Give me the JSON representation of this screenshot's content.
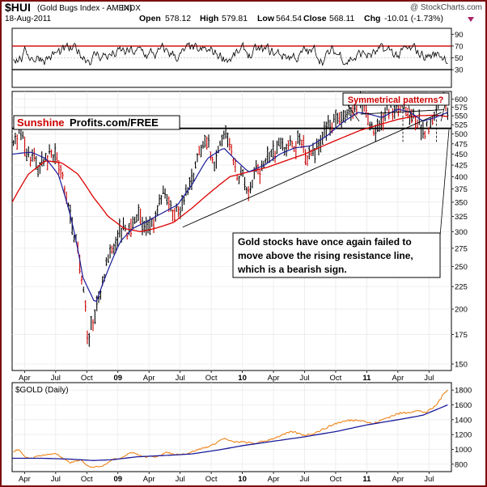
{
  "chart_data": [
    {
      "type": "line",
      "panel": "rsi",
      "ylim": [
        0,
        100
      ],
      "yticks": [
        30,
        50,
        70,
        90
      ],
      "reference_lines": [
        30,
        70
      ],
      "reference_color": "#cc0000"
    },
    {
      "type": "bar",
      "panel": "price",
      "symbol": "$HUI",
      "title_name": "(Gold Bugs Index - AMEX)",
      "exchange": "INDX",
      "date": "18-Aug-2011",
      "watermark": "@ StockCharts.com",
      "ohlc": {
        "open_label": "Open",
        "open": "578.12",
        "high_label": "High",
        "high": "579.81",
        "low_label": "Low",
        "low": "564.54",
        "close_label": "Close",
        "close": "568.11",
        "chg_label": "Chg",
        "chg": "-10.01 (-1.73%)"
      },
      "scale": "log",
      "ylim": [
        145,
        625
      ],
      "yticks": [
        150,
        175,
        200,
        225,
        250,
        275,
        300,
        325,
        350,
        375,
        400,
        425,
        450,
        475,
        500,
        525,
        550,
        575,
        600
      ],
      "xlim": [
        2008.15,
        2011.68
      ],
      "x_ticks": [
        {
          "x": 2008.25,
          "label": "Apr"
        },
        {
          "x": 2008.5,
          "label": "Jul"
        },
        {
          "x": 2008.75,
          "label": "Oct"
        },
        {
          "x": 2009.0,
          "label": "09"
        },
        {
          "x": 2009.25,
          "label": "Apr"
        },
        {
          "x": 2009.5,
          "label": "Jul"
        },
        {
          "x": 2009.75,
          "label": "Oct"
        },
        {
          "x": 2010.0,
          "label": "10"
        },
        {
          "x": 2010.25,
          "label": "Apr"
        },
        {
          "x": 2010.5,
          "label": "Jul"
        },
        {
          "x": 2010.75,
          "label": "Oct"
        },
        {
          "x": 2011.0,
          "label": "11"
        },
        {
          "x": 2011.25,
          "label": "Apr"
        },
        {
          "x": 2011.5,
          "label": "Jul"
        }
      ],
      "price_anchors": [
        [
          2008.15,
          455
        ],
        [
          2008.18,
          485
        ],
        [
          2008.22,
          505
        ],
        [
          2008.25,
          470
        ],
        [
          2008.29,
          435
        ],
        [
          2008.33,
          440
        ],
        [
          2008.37,
          420
        ],
        [
          2008.42,
          435
        ],
        [
          2008.46,
          455
        ],
        [
          2008.5,
          440
        ],
        [
          2008.55,
          410
        ],
        [
          2008.59,
          350
        ],
        [
          2008.63,
          310
        ],
        [
          2008.66,
          290
        ],
        [
          2008.7,
          250
        ],
        [
          2008.73,
          215
        ],
        [
          2008.76,
          160
        ],
        [
          2008.79,
          185
        ],
        [
          2008.82,
          200
        ],
        [
          2008.86,
          215
        ],
        [
          2008.9,
          245
        ],
        [
          2008.94,
          265
        ],
        [
          2008.98,
          285
        ],
        [
          2009.02,
          305
        ],
        [
          2009.06,
          305
        ],
        [
          2009.1,
          300
        ],
        [
          2009.14,
          330
        ],
        [
          2009.17,
          340
        ],
        [
          2009.21,
          300
        ],
        [
          2009.25,
          310
        ],
        [
          2009.29,
          315
        ],
        [
          2009.33,
          350
        ],
        [
          2009.37,
          380
        ],
        [
          2009.41,
          345
        ],
        [
          2009.45,
          335
        ],
        [
          2009.49,
          325
        ],
        [
          2009.53,
          350
        ],
        [
          2009.57,
          380
        ],
        [
          2009.61,
          410
        ],
        [
          2009.65,
          445
        ],
        [
          2009.69,
          470
        ],
        [
          2009.73,
          480
        ],
        [
          2009.76,
          435
        ],
        [
          2009.79,
          430
        ],
        [
          2009.82,
          475
        ],
        [
          2009.85,
          505
        ],
        [
          2009.88,
          480
        ],
        [
          2009.91,
          455
        ],
        [
          2009.94,
          410
        ],
        [
          2009.97,
          395
        ],
        [
          2010.0,
          415
        ],
        [
          2010.04,
          375
        ],
        [
          2010.07,
          390
        ],
        [
          2010.11,
          420
        ],
        [
          2010.15,
          415
        ],
        [
          2010.2,
          440
        ],
        [
          2010.25,
          450
        ],
        [
          2010.3,
          475
        ],
        [
          2010.34,
          455
        ],
        [
          2010.38,
          475
        ],
        [
          2010.42,
          470
        ],
        [
          2010.47,
          490
        ],
        [
          2010.51,
          440
        ],
        [
          2010.55,
          445
        ],
        [
          2010.59,
          465
        ],
        [
          2010.63,
          480
        ],
        [
          2010.67,
          515
        ],
        [
          2010.71,
          525
        ],
        [
          2010.75,
          535
        ],
        [
          2010.8,
          545
        ],
        [
          2010.85,
          565
        ],
        [
          2010.9,
          560
        ],
        [
          2010.94,
          585
        ],
        [
          2010.98,
          575
        ],
        [
          2011.02,
          520
        ],
        [
          2011.06,
          500
        ],
        [
          2011.1,
          530
        ],
        [
          2011.15,
          560
        ],
        [
          2011.2,
          570
        ],
        [
          2011.25,
          585
        ],
        [
          2011.3,
          585
        ],
        [
          2011.34,
          555
        ],
        [
          2011.38,
          540
        ],
        [
          2011.42,
          530
        ],
        [
          2011.46,
          510
        ],
        [
          2011.5,
          525
        ],
        [
          2011.54,
          565
        ],
        [
          2011.58,
          575
        ],
        [
          2011.62,
          590
        ],
        [
          2011.65,
          568
        ]
      ],
      "ma_slow_anchors": [
        [
          2008.15,
          350
        ],
        [
          2008.28,
          405
        ],
        [
          2008.42,
          435
        ],
        [
          2008.55,
          430
        ],
        [
          2008.68,
          405
        ],
        [
          2008.8,
          360
        ],
        [
          2008.92,
          325
        ],
        [
          2009.05,
          305
        ],
        [
          2009.18,
          300
        ],
        [
          2009.3,
          305
        ],
        [
          2009.45,
          315
        ],
        [
          2009.6,
          340
        ],
        [
          2009.75,
          370
        ],
        [
          2009.9,
          400
        ],
        [
          2010.05,
          410
        ],
        [
          2010.2,
          420
        ],
        [
          2010.35,
          435
        ],
        [
          2010.5,
          450
        ],
        [
          2010.65,
          470
        ],
        [
          2010.8,
          490
        ],
        [
          2010.95,
          510
        ],
        [
          2011.1,
          525
        ],
        [
          2011.25,
          540
        ],
        [
          2011.4,
          550
        ],
        [
          2011.55,
          552
        ],
        [
          2011.65,
          548
        ]
      ],
      "ma_fast_anchors": [
        [
          2008.15,
          450
        ],
        [
          2008.3,
          455
        ],
        [
          2008.42,
          440
        ],
        [
          2008.52,
          405
        ],
        [
          2008.62,
          325
        ],
        [
          2008.72,
          235
        ],
        [
          2008.82,
          205
        ],
        [
          2008.92,
          245
        ],
        [
          2009.02,
          285
        ],
        [
          2009.12,
          305
        ],
        [
          2009.22,
          315
        ],
        [
          2009.35,
          330
        ],
        [
          2009.48,
          345
        ],
        [
          2009.6,
          385
        ],
        [
          2009.72,
          440
        ],
        [
          2009.85,
          465
        ],
        [
          2009.95,
          435
        ],
        [
          2010.05,
          410
        ],
        [
          2010.18,
          425
        ],
        [
          2010.3,
          450
        ],
        [
          2010.42,
          465
        ],
        [
          2010.55,
          470
        ],
        [
          2010.68,
          495
        ],
        [
          2010.8,
          530
        ],
        [
          2010.93,
          560
        ],
        [
          2011.02,
          555
        ],
        [
          2011.12,
          545
        ],
        [
          2011.25,
          570
        ],
        [
          2011.35,
          560
        ],
        [
          2011.45,
          535
        ],
        [
          2011.55,
          545
        ],
        [
          2011.65,
          560
        ]
      ],
      "support_line": {
        "y": 515,
        "x_start": 2008.15,
        "x_end": 2011.68
      },
      "rising_line": {
        "points": [
          [
            2009.52,
            307
          ],
          [
            2011.6,
            560
          ]
        ]
      },
      "upper_line": {
        "points": [
          [
            2010.95,
            555
          ],
          [
            2011.62,
            568
          ]
        ]
      },
      "dashed_lines": [
        2011.29,
        2011.56
      ],
      "annotations": {
        "symmetrical": "Symmetrical patterns?",
        "comment_line1": "Gold stocks have once again failed to",
        "comment_line2": "move above the rising resistance line,",
        "comment_line3": "which is a bearish sign."
      },
      "logo": {
        "part1": "Sunshine",
        "part2": "Profits.com/FREE"
      }
    },
    {
      "type": "line",
      "panel": "gold",
      "title": "$GOLD (Daily)",
      "ylim": [
        700,
        1900
      ],
      "yticks": [
        800,
        1000,
        1200,
        1400,
        1600,
        1800
      ],
      "anchors": [
        [
          2008.15,
          960
        ],
        [
          2008.2,
          1000
        ],
        [
          2008.25,
          900
        ],
        [
          2008.3,
          880
        ],
        [
          2008.38,
          920
        ],
        [
          2008.45,
          930
        ],
        [
          2008.5,
          950
        ],
        [
          2008.56,
          870
        ],
        [
          2008.62,
          820
        ],
        [
          2008.7,
          860
        ],
        [
          2008.75,
          780
        ],
        [
          2008.8,
          760
        ],
        [
          2008.88,
          780
        ],
        [
          2008.95,
          860
        ],
        [
          2009.02,
          880
        ],
        [
          2009.1,
          960
        ],
        [
          2009.15,
          940
        ],
        [
          2009.2,
          900
        ],
        [
          2009.3,
          900
        ],
        [
          2009.4,
          960
        ],
        [
          2009.45,
          930
        ],
        [
          2009.55,
          940
        ],
        [
          2009.65,
          1000
        ],
        [
          2009.75,
          1050
        ],
        [
          2009.85,
          1150
        ],
        [
          2009.92,
          1100
        ],
        [
          2010.0,
          1100
        ],
        [
          2010.1,
          1080
        ],
        [
          2010.2,
          1120
        ],
        [
          2010.3,
          1180
        ],
        [
          2010.4,
          1240
        ],
        [
          2010.5,
          1190
        ],
        [
          2010.58,
          1220
        ],
        [
          2010.66,
          1280
        ],
        [
          2010.75,
          1350
        ],
        [
          2010.85,
          1390
        ],
        [
          2010.95,
          1400
        ],
        [
          2011.05,
          1340
        ],
        [
          2011.15,
          1420
        ],
        [
          2011.25,
          1480
        ],
        [
          2011.32,
          1500
        ],
        [
          2011.4,
          1520
        ],
        [
          2011.48,
          1500
        ],
        [
          2011.55,
          1580
        ],
        [
          2011.6,
          1700
        ],
        [
          2011.65,
          1820
        ]
      ],
      "ma_anchors": [
        [
          2008.15,
          880
        ],
        [
          2008.4,
          880
        ],
        [
          2008.6,
          870
        ],
        [
          2008.8,
          850
        ],
        [
          2008.95,
          860
        ],
        [
          2009.15,
          900
        ],
        [
          2009.4,
          920
        ],
        [
          2009.6,
          940
        ],
        [
          2009.8,
          990
        ],
        [
          2010.0,
          1050
        ],
        [
          2010.25,
          1110
        ],
        [
          2010.5,
          1170
        ],
        [
          2010.75,
          1240
        ],
        [
          2011.0,
          1330
        ],
        [
          2011.25,
          1400
        ],
        [
          2011.45,
          1460
        ],
        [
          2011.65,
          1600
        ]
      ],
      "x_ticks": [
        {
          "x": 2008.25,
          "label": "Apr"
        },
        {
          "x": 2008.5,
          "label": "Jul"
        },
        {
          "x": 2008.75,
          "label": "Oct"
        },
        {
          "x": 2009.0,
          "label": "09"
        },
        {
          "x": 2009.25,
          "label": "Apr"
        },
        {
          "x": 2009.5,
          "label": "Jul"
        },
        {
          "x": 2009.75,
          "label": "Oct"
        },
        {
          "x": 2010.0,
          "label": "10"
        },
        {
          "x": 2010.25,
          "label": "Apr"
        },
        {
          "x": 2010.5,
          "label": "Jul"
        },
        {
          "x": 2010.75,
          "label": "Oct"
        },
        {
          "x": 2011.0,
          "label": "11"
        },
        {
          "x": 2011.25,
          "label": "Apr"
        },
        {
          "x": 2011.5,
          "label": "Jul"
        }
      ]
    }
  ],
  "colors": {
    "frame": "#7a0f0f",
    "bar": "#000000",
    "price_bar_red": "#cc0000",
    "ma_fast": "#1a1a99",
    "ma_slow": "#dd0000",
    "gold_line": "#ee7700",
    "gold_ma": "#1a1a99",
    "callout_red": "#cc0000",
    "chg_arrow": "#aa2266"
  }
}
